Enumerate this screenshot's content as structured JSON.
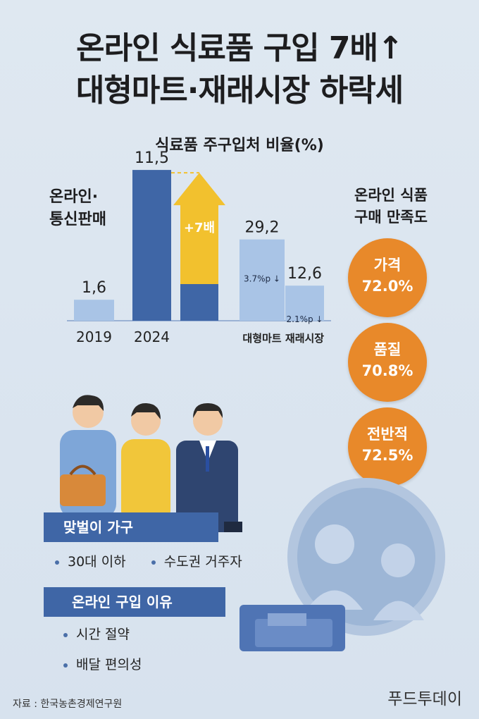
{
  "title_line1": "온라인 식료품 구입 7배↑",
  "title_line2": "대형마트·재래시장 하락세",
  "chart_data": {
    "type": "bar",
    "title": "식료품 주구입처 비율(%)",
    "series_label": "온라인·통신판매",
    "categories": [
      "2019",
      "2024",
      "대형마트",
      "재래시장"
    ],
    "values": [
      1.6,
      11.5,
      29.2,
      12.6
    ],
    "value_labels": [
      "1,6",
      "11,5",
      "29,2",
      "12,6"
    ],
    "change_labels": [
      "",
      "",
      "3.7%p ↓",
      "2.1%p ↓"
    ],
    "growth_label": "+7배",
    "ylim": [
      0,
      40
    ],
    "colors": {
      "online_2019": "#a9c4e6",
      "online_2024": "#3f66a6",
      "arrow": "#f2c12e",
      "offline": "#a9c4e6"
    }
  },
  "satisfaction": {
    "heading": "온라인 식품\n구매 만족도",
    "items": [
      {
        "name": "가격",
        "value": "72.0%"
      },
      {
        "name": "품질",
        "value": "70.8%"
      },
      {
        "name": "전반적",
        "value": "72.5%"
      }
    ],
    "color": "#e8892a"
  },
  "households": {
    "label": "맞벌이 가구",
    "bullets": [
      "30대 이하",
      "수도권 거주자"
    ]
  },
  "reasons": {
    "label": "온라인 구입 이유",
    "bullets": [
      "시간 절약",
      "배달 편의성"
    ]
  },
  "source": "자료 : 한국농촌경제연구원",
  "brand": "푸드투데이"
}
